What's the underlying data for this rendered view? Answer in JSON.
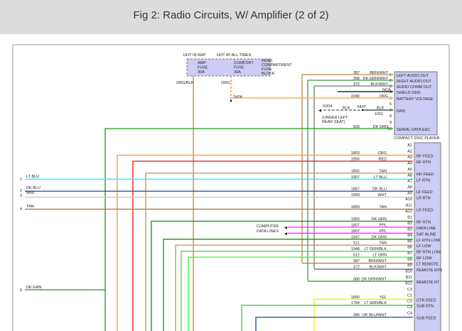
{
  "header": {
    "title": "Fig 2: Radio Circuits, W/ Amplifier (2 of 2)"
  },
  "fuse_block": {
    "hot1": "HOT IN RAP",
    "hot2": "HOT AT ALL TIMES",
    "fuse1": [
      "AMP",
      "FUSE",
      "30A"
    ],
    "fuse2": [
      "COMFORT",
      "FUSE",
      "30A"
    ],
    "name": [
      "REAR",
      "COMPARTMENT",
      "FUSE",
      "BLOCK"
    ],
    "wire1": "ORG/BLK",
    "wire2": "ORG",
    "splice": "S404"
  },
  "cd_player": {
    "name": "COMPACT DISC PLAYER",
    "pins": [
      {
        "pin": "1",
        "label": "LEFT AUDIO OUT",
        "circuit": "387",
        "color": "BRN/WHT",
        "hex": "#b0864e"
      },
      {
        "pin": "2",
        "label": "RIGHT AUDIO OUT",
        "circuit": "368",
        "color": "DK GRN/WHT",
        "hex": "#3a9a3a"
      },
      {
        "pin": "3",
        "label": "AUDIO COMM OUT",
        "circuit": "372",
        "color": "BLK/WHT",
        "hex": "#777777"
      },
      {
        "pin": "4",
        "label": "SHIELD GRD",
        "circuit": "",
        "color": "NCA",
        "hex": "#000000"
      },
      {
        "pin": "5",
        "label": "BATTERY VOLTAGE",
        "circuit": "2240",
        "color": "ORG",
        "hex": "#f5a040"
      },
      {
        "pin": "6",
        "label": "",
        "circuit": "",
        "color": "",
        "hex": ""
      },
      {
        "pin": "7",
        "label": "GRD",
        "circuit": "1051",
        "color": "BLK",
        "hex": "#555555"
      },
      {
        "pin": "8",
        "label": "",
        "circuit": "",
        "color": "",
        "hex": ""
      },
      {
        "pin": "9",
        "label": "",
        "circuit": "",
        "color": "",
        "hex": ""
      },
      {
        "pin": "10",
        "label": "SERIAL DATA E&C",
        "circuit": "835",
        "color": "DK GRN",
        "hex": "#1a9a1a"
      }
    ],
    "ground": {
      "name": "G304",
      "note": [
        "(UNDER LEFT",
        "REAR SEAT)"
      ],
      "color": "BLK",
      "splice": "S407"
    }
  },
  "amp": {
    "pins": [
      {
        "pin": "A1",
        "label": "",
        "circuit": "",
        "color": "",
        "hex": ""
      },
      {
        "pin": "A2",
        "label": "RF FEED",
        "circuit": "1853",
        "color": "ORG",
        "hex": "#f5a040"
      },
      {
        "pin": "A3",
        "label": "RF RTN",
        "circuit": "1956",
        "color": "RED",
        "hex": "#ee2020"
      },
      {
        "pin": "A4",
        "label": "",
        "circuit": "",
        "color": "",
        "hex": ""
      },
      {
        "pin": "A5",
        "label": "RR FEED",
        "circuit": "1855",
        "color": "TAN",
        "hex": "#c09a6a"
      },
      {
        "pin": "A6",
        "label": "LF RTN",
        "circuit": "1957",
        "color": "LT BLU",
        "hex": "#40e8f0"
      },
      {
        "pin": "A7",
        "label": "",
        "circuit": "",
        "color": "",
        "hex": ""
      },
      {
        "pin": "A8",
        "label": "LF FEED",
        "circuit": "1857",
        "color": "DK BLU",
        "hex": "#3050a0"
      },
      {
        "pin": "A9",
        "label": "LR RTN",
        "circuit": "1959",
        "color": "WHT",
        "hex": "#c8c8c8"
      },
      {
        "pin": "A10",
        "label": "",
        "circuit": "",
        "color": "",
        "hex": ""
      },
      {
        "pin": "A11",
        "label": "LR FEED",
        "circuit": "1859",
        "color": "TAN",
        "hex": "#b08850"
      },
      {
        "pin": "A12",
        "label": "",
        "circuit": "",
        "color": "",
        "hex": ""
      },
      {
        "pin": "B1",
        "label": "RF RTN",
        "circuit": "1953",
        "color": "DK GRN",
        "hex": "#1a9a1a"
      },
      {
        "pin": "B2",
        "label": "DATA LINE",
        "circuit": "1807",
        "color": "PPL",
        "hex": "#ff30ff"
      },
      {
        "pin": "B3",
        "label": "DAT ALINE",
        "circuit": "1807",
        "color": "PPL",
        "hex": "#ff30ff"
      },
      {
        "pin": "B4",
        "label": "LF RTN LOW",
        "circuit": "1947",
        "color": "DK GRN",
        "hex": "#2a9a2a"
      },
      {
        "pin": "B5",
        "label": "LF LOW",
        "circuit": "511",
        "color": "TAN",
        "hex": "#c09a6a"
      },
      {
        "pin": "B6",
        "label": "RF RTN LOW",
        "circuit": "1948",
        "color": "LT GRN/BLK",
        "hex": "#60d060"
      },
      {
        "pin": "B7",
        "label": "RF LOW",
        "circuit": "512",
        "color": "LT GRN",
        "hex": "#50f050"
      },
      {
        "pin": "B8",
        "label": "LT REMOTE",
        "circuit": "387",
        "color": "BRN/WHT",
        "hex": "#b0864e"
      },
      {
        "pin": "B9",
        "label": "REMOTE RTN",
        "circuit": "372",
        "color": "BLK/WHT",
        "hex": "#777777"
      },
      {
        "pin": "B10",
        "label": "",
        "circuit": "",
        "color": "",
        "hex": ""
      },
      {
        "pin": "B11",
        "label": "REMOTE RT",
        "circuit": "368",
        "color": "DK GRN/WHT",
        "hex": "#3a9a3a"
      },
      {
        "pin": "B12",
        "label": "",
        "circuit": "",
        "color": "",
        "hex": ""
      },
      {
        "pin": "C3",
        "label": "",
        "circuit": "",
        "color": "",
        "hex": ""
      },
      {
        "pin": "C1",
        "label": "CTR FEED",
        "circuit": "1850",
        "color": "YEL",
        "hex": "#f0f020"
      },
      {
        "pin": "C2",
        "label": "SUB RTN",
        "circuit": "1784",
        "color": "LT GRN/BLK",
        "hex": "#50c050"
      },
      {
        "pin": "C3",
        "label": "",
        "circuit": "",
        "color": "",
        "hex": ""
      },
      {
        "pin": "C4",
        "label": "SUB FEED",
        "circuit": "346",
        "color": "DK BLU/WHT",
        "hex": "#3050a0"
      }
    ]
  },
  "computer": [
    "COMPUTER",
    "DATA LINES"
  ],
  "left_connector": [
    {
      "num": "1",
      "color": "LT BLU"
    },
    {
      "num": "2",
      "color": "DK BLU"
    },
    {
      "num": "3",
      "color": "WHT"
    },
    {
      "num": "4",
      "color": "TAN"
    },
    {
      "num": "5",
      "color": "DK GRN"
    }
  ]
}
